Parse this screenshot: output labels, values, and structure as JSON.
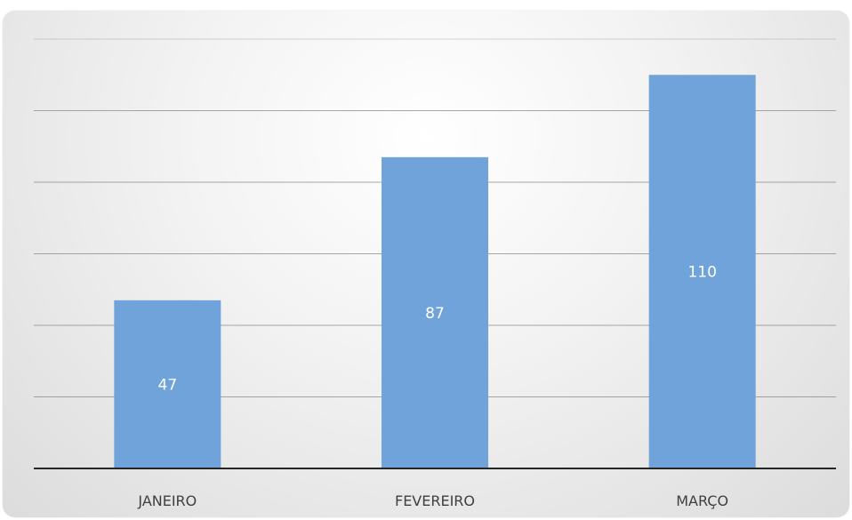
{
  "chart_data": {
    "type": "bar",
    "categories": [
      "JANEIRO",
      "FEVEREIRO",
      "MARÇO"
    ],
    "values": [
      47,
      87,
      110
    ],
    "ylim": [
      0,
      120
    ],
    "grid": true,
    "data_labels": "inside-center",
    "colors": {
      "bar": "#6fa3d9",
      "gridline": "#8a8a8a",
      "axis": "#262626",
      "label": "#ffffff",
      "tick_text": "#404040"
    }
  }
}
